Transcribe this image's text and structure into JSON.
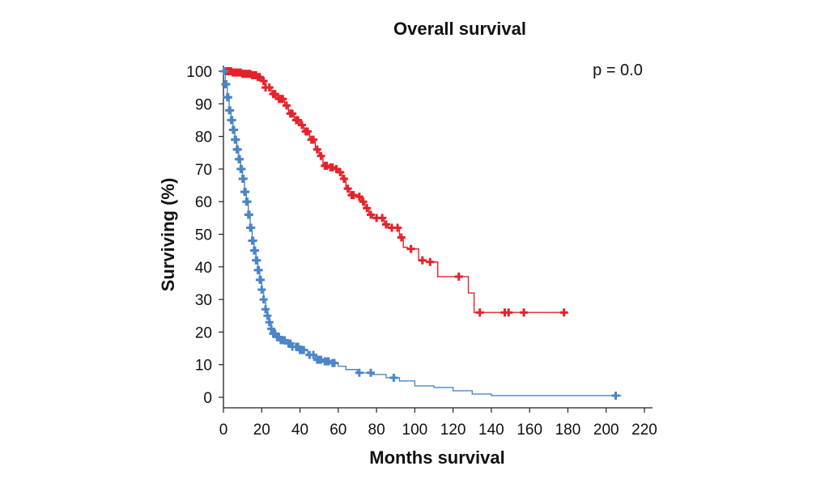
{
  "chart_data": {
    "type": "line",
    "title": "Overall survival",
    "xlabel": "Months survival",
    "ylabel": "Surviving (%)",
    "annotation": "p = 0.0",
    "xlim": [
      0,
      220
    ],
    "ylim": [
      0,
      100
    ],
    "xticks": [
      0,
      20,
      40,
      60,
      80,
      100,
      120,
      140,
      160,
      180,
      200,
      220
    ],
    "yticks": [
      0,
      10,
      20,
      30,
      40,
      50,
      60,
      70,
      80,
      90,
      100
    ],
    "grid": false,
    "legend": "none",
    "series": [
      {
        "color": "#e4222b",
        "step": [
          [
            0,
            100
          ],
          [
            5,
            99.6
          ],
          [
            10,
            99.2
          ],
          [
            15,
            98.8
          ],
          [
            18,
            98.2
          ],
          [
            20,
            97
          ],
          [
            22,
            95
          ],
          [
            25,
            93
          ],
          [
            28,
            91.5
          ],
          [
            32,
            89.5
          ],
          [
            34,
            87
          ],
          [
            37,
            85
          ],
          [
            40,
            83.5
          ],
          [
            42,
            81.5
          ],
          [
            45,
            79
          ],
          [
            48,
            76
          ],
          [
            50,
            74
          ],
          [
            52,
            71
          ],
          [
            55,
            70.5
          ],
          [
            58,
            70
          ],
          [
            60,
            69
          ],
          [
            62,
            67
          ],
          [
            64,
            64
          ],
          [
            66,
            62
          ],
          [
            70,
            61.5
          ],
          [
            72,
            60
          ],
          [
            74,
            58
          ],
          [
            76,
            56
          ],
          [
            78,
            55
          ],
          [
            82,
            55
          ],
          [
            84,
            53
          ],
          [
            86,
            52
          ],
          [
            90,
            52
          ],
          [
            92,
            49
          ],
          [
            94,
            46
          ],
          [
            96,
            45.5
          ],
          [
            100,
            45.5
          ],
          [
            102,
            42
          ],
          [
            106,
            41.5
          ],
          [
            110,
            41.5
          ],
          [
            112,
            37
          ],
          [
            122,
            37
          ],
          [
            128,
            32
          ],
          [
            131,
            26
          ],
          [
            175,
            26
          ],
          [
            180,
            26
          ]
        ],
        "censored_x": [
          1,
          2,
          3,
          4,
          5,
          6,
          7,
          8,
          9,
          10,
          11,
          12,
          13,
          14,
          15,
          16,
          17,
          18,
          19,
          21,
          22,
          24,
          26,
          27,
          29,
          30,
          31,
          33,
          35,
          36,
          38,
          39,
          41,
          43,
          44,
          46,
          47,
          49,
          51,
          53,
          54,
          56,
          57,
          59,
          61,
          63,
          65,
          67,
          68,
          71,
          73,
          75,
          77,
          80,
          83,
          85,
          88,
          91,
          93,
          98,
          104,
          108,
          123,
          134,
          147,
          149,
          157,
          178
        ]
      },
      {
        "color": "#4a86c6",
        "step": [
          [
            0,
            100
          ],
          [
            1,
            96
          ],
          [
            2,
            92
          ],
          [
            3,
            88
          ],
          [
            4,
            85
          ],
          [
            5,
            82
          ],
          [
            6,
            79
          ],
          [
            7,
            76
          ],
          [
            8,
            73
          ],
          [
            9,
            70
          ],
          [
            10,
            67
          ],
          [
            11,
            63
          ],
          [
            12,
            60
          ],
          [
            13,
            56
          ],
          [
            14,
            52
          ],
          [
            15,
            48
          ],
          [
            16,
            45
          ],
          [
            17,
            42
          ],
          [
            18,
            39
          ],
          [
            19,
            36
          ],
          [
            20,
            33
          ],
          [
            21,
            30
          ],
          [
            22,
            27
          ],
          [
            23,
            25
          ],
          [
            24,
            23
          ],
          [
            25,
            21
          ],
          [
            26,
            19.5
          ],
          [
            28,
            18.5
          ],
          [
            30,
            17.5
          ],
          [
            33,
            16.5
          ],
          [
            36,
            15.5
          ],
          [
            40,
            14.5
          ],
          [
            44,
            13
          ],
          [
            48,
            11.5
          ],
          [
            52,
            11
          ],
          [
            56,
            10.5
          ],
          [
            60,
            9.5
          ],
          [
            64,
            8.5
          ],
          [
            70,
            7.5
          ],
          [
            78,
            7
          ],
          [
            85,
            6
          ],
          [
            92,
            5
          ],
          [
            100,
            3.5
          ],
          [
            110,
            3
          ],
          [
            120,
            2
          ],
          [
            130,
            1
          ],
          [
            140,
            0.5
          ],
          [
            208,
            0.5
          ]
        ],
        "censored_x": [
          0.5,
          1,
          1.5,
          2,
          2.5,
          3,
          3.5,
          4,
          4.5,
          5,
          5.5,
          6,
          6.5,
          7,
          7.5,
          8,
          8.5,
          9,
          9.5,
          10,
          10.5,
          11,
          11.5,
          12,
          12.5,
          13,
          13.5,
          14,
          14.5,
          15,
          15.5,
          16,
          16.5,
          17,
          17.5,
          18,
          18.5,
          19,
          19.5,
          20,
          21,
          22,
          23,
          24,
          25,
          26,
          27,
          28,
          29,
          30,
          31,
          32,
          34,
          35,
          36,
          38,
          39,
          40,
          41,
          42,
          45,
          47,
          49,
          50,
          51,
          53,
          54,
          55,
          57,
          58,
          71,
          77,
          89,
          205
        ]
      }
    ]
  }
}
